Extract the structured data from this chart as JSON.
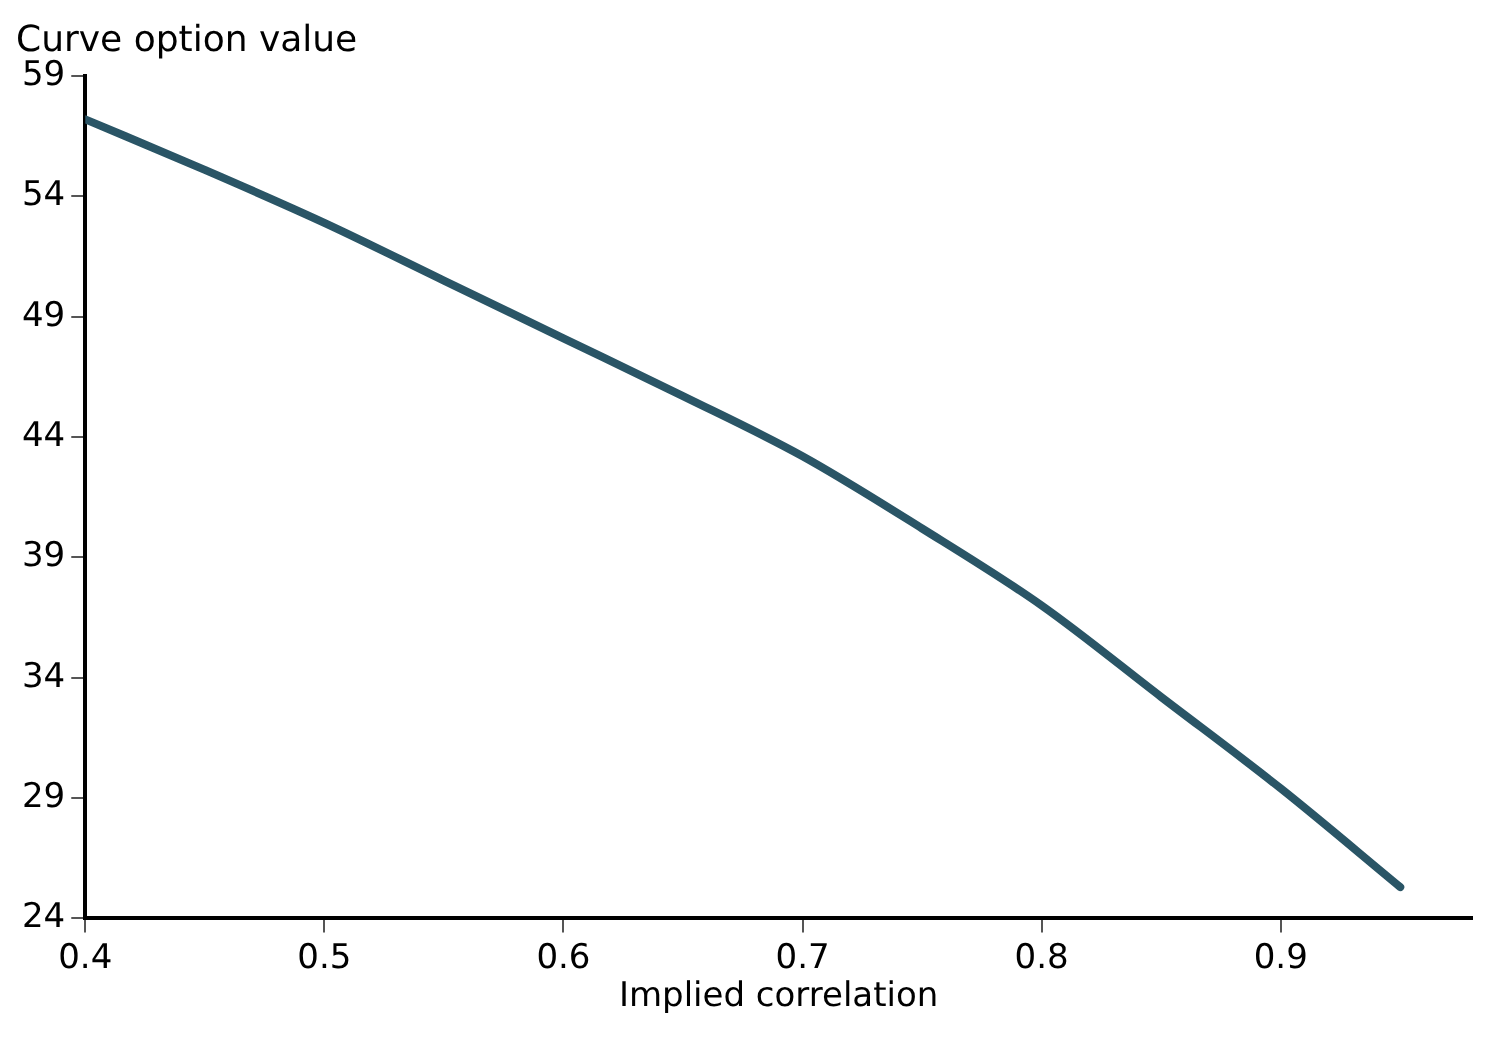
{
  "chart_data": {
    "type": "line",
    "xlabel": "Implied correlation",
    "ylabel": "Curve option value",
    "x": [
      0.4,
      0.45,
      0.5,
      0.55,
      0.6,
      0.65,
      0.7,
      0.75,
      0.8,
      0.85,
      0.9,
      0.95
    ],
    "series": [
      {
        "color": "#2a5566",
        "values": [
          57.2,
          55.1,
          52.9,
          50.5,
          48.1,
          45.7,
          43.2,
          40.2,
          37.0,
          33.2,
          29.4,
          25.3
        ]
      }
    ],
    "xlim": [
      0.4,
      0.98
    ],
    "xticks": [
      0.4,
      0.5,
      0.6,
      0.7,
      0.8,
      0.9
    ],
    "ylim": [
      24,
      59
    ],
    "yticks": [
      24,
      29,
      34,
      39,
      44,
      49,
      54,
      59
    ],
    "grid": false,
    "legend": false,
    "marker": "none",
    "line_style": "solid"
  }
}
